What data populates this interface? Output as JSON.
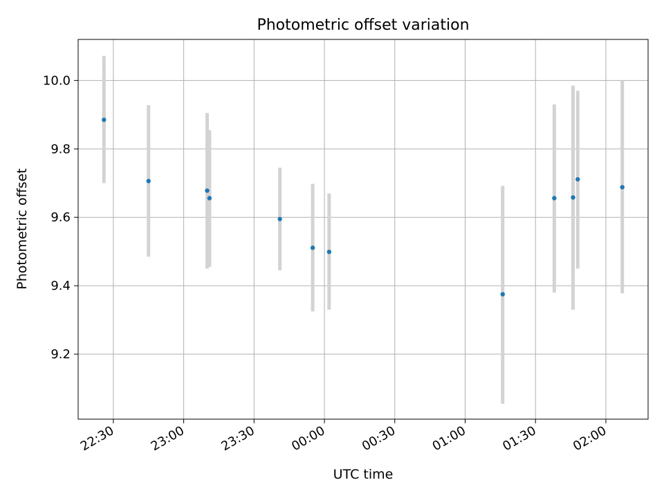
{
  "chart_data": {
    "type": "scatter",
    "title": "Photometric offset variation",
    "xlabel": "UTC time",
    "ylabel": "Photometric offset",
    "x_axis": {
      "kind": "time",
      "range": [
        "22:15",
        "02:18"
      ],
      "ticks": [
        "22:30",
        "23:00",
        "23:30",
        "00:00",
        "00:30",
        "01:00",
        "01:30",
        "02:00"
      ]
    },
    "y_axis": {
      "range": [
        9.01,
        10.12
      ],
      "ticks": [
        9.2,
        9.4,
        9.6,
        9.8,
        10.0
      ]
    },
    "grid": true,
    "marker_color": "#1f77b4",
    "errorbar_color": "#d3d3d3",
    "points": [
      {
        "time": "22:26",
        "y": 9.885,
        "ylow": 9.7,
        "yhigh": 10.072
      },
      {
        "time": "22:45",
        "y": 9.706,
        "ylow": 9.485,
        "yhigh": 9.928
      },
      {
        "time": "23:10",
        "y": 9.678,
        "ylow": 9.45,
        "yhigh": 9.905
      },
      {
        "time": "23:11",
        "y": 9.656,
        "ylow": 9.455,
        "yhigh": 9.855
      },
      {
        "time": "23:41",
        "y": 9.595,
        "ylow": 9.445,
        "yhigh": 9.745
      },
      {
        "time": "23:55",
        "y": 9.511,
        "ylow": 9.325,
        "yhigh": 9.698
      },
      {
        "time": "00:02",
        "y": 9.499,
        "ylow": 9.33,
        "yhigh": 9.67
      },
      {
        "time": "01:16",
        "y": 9.375,
        "ylow": 9.055,
        "yhigh": 9.692
      },
      {
        "time": "01:38",
        "y": 9.656,
        "ylow": 9.38,
        "yhigh": 9.93
      },
      {
        "time": "01:46",
        "y": 9.658,
        "ylow": 9.33,
        "yhigh": 9.985
      },
      {
        "time": "01:48",
        "y": 9.711,
        "ylow": 9.45,
        "yhigh": 9.97
      },
      {
        "time": "02:07",
        "y": 9.688,
        "ylow": 9.378,
        "yhigh": 10.0
      }
    ]
  }
}
